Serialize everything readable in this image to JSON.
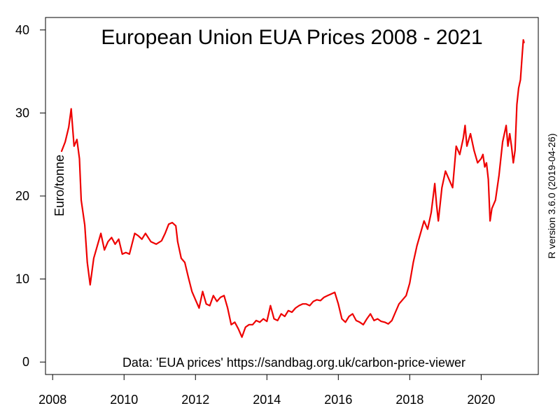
{
  "chart_data": {
    "type": "line",
    "title": "European Union EUA Prices 2008 - 2021",
    "ylabel": "Euro/tonne",
    "xlabel": "",
    "annotation": "Data: 'EUA prices' https://sandbag.org.uk/carbon-price-viewer",
    "side_note": "R version 3.6.0 (2019-04-26)",
    "xlim": [
      2007.8,
      2021.6
    ],
    "ylim": [
      -1.5,
      41.5
    ],
    "x_ticks": [
      2008,
      2010,
      2012,
      2014,
      2016,
      2018,
      2020
    ],
    "y_ticks": [
      0,
      10,
      20,
      30,
      40
    ],
    "grid": false,
    "series": [
      {
        "color": "#ee0000",
        "points": [
          [
            2008.25,
            25.4
          ],
          [
            2008.35,
            26.5
          ],
          [
            2008.45,
            28.3
          ],
          [
            2008.52,
            30.5
          ],
          [
            2008.6,
            26.0
          ],
          [
            2008.68,
            26.8
          ],
          [
            2008.75,
            24.5
          ],
          [
            2008.8,
            19.5
          ],
          [
            2008.9,
            16.5
          ],
          [
            2008.97,
            12.0
          ],
          [
            2009.05,
            9.3
          ],
          [
            2009.15,
            12.5
          ],
          [
            2009.25,
            14.0
          ],
          [
            2009.35,
            15.5
          ],
          [
            2009.45,
            13.5
          ],
          [
            2009.55,
            14.5
          ],
          [
            2009.65,
            15.0
          ],
          [
            2009.75,
            14.2
          ],
          [
            2009.85,
            14.8
          ],
          [
            2009.95,
            13.0
          ],
          [
            2010.05,
            13.2
          ],
          [
            2010.15,
            13.0
          ],
          [
            2010.3,
            15.5
          ],
          [
            2010.4,
            15.2
          ],
          [
            2010.5,
            14.8
          ],
          [
            2010.6,
            15.5
          ],
          [
            2010.75,
            14.5
          ],
          [
            2010.9,
            14.2
          ],
          [
            2011.05,
            14.6
          ],
          [
            2011.15,
            15.5
          ],
          [
            2011.25,
            16.6
          ],
          [
            2011.35,
            16.8
          ],
          [
            2011.45,
            16.4
          ],
          [
            2011.5,
            14.5
          ],
          [
            2011.6,
            12.5
          ],
          [
            2011.7,
            12.0
          ],
          [
            2011.8,
            10.2
          ],
          [
            2011.9,
            8.5
          ],
          [
            2012.0,
            7.5
          ],
          [
            2012.1,
            6.5
          ],
          [
            2012.2,
            8.5
          ],
          [
            2012.3,
            7.0
          ],
          [
            2012.4,
            6.8
          ],
          [
            2012.5,
            8.0
          ],
          [
            2012.6,
            7.3
          ],
          [
            2012.7,
            7.8
          ],
          [
            2012.8,
            8.0
          ],
          [
            2012.9,
            6.5
          ],
          [
            2013.0,
            4.5
          ],
          [
            2013.1,
            4.8
          ],
          [
            2013.2,
            4.0
          ],
          [
            2013.3,
            3.0
          ],
          [
            2013.4,
            4.2
          ],
          [
            2013.5,
            4.5
          ],
          [
            2013.6,
            4.5
          ],
          [
            2013.7,
            5.0
          ],
          [
            2013.8,
            4.8
          ],
          [
            2013.9,
            5.2
          ],
          [
            2014.0,
            4.9
          ],
          [
            2014.1,
            6.8
          ],
          [
            2014.2,
            5.2
          ],
          [
            2014.3,
            5.0
          ],
          [
            2014.4,
            5.8
          ],
          [
            2014.5,
            5.5
          ],
          [
            2014.6,
            6.2
          ],
          [
            2014.7,
            6.0
          ],
          [
            2014.8,
            6.5
          ],
          [
            2014.9,
            6.8
          ],
          [
            2015.0,
            7.0
          ],
          [
            2015.1,
            7.0
          ],
          [
            2015.2,
            6.8
          ],
          [
            2015.3,
            7.3
          ],
          [
            2015.4,
            7.5
          ],
          [
            2015.5,
            7.4
          ],
          [
            2015.6,
            7.8
          ],
          [
            2015.7,
            8.0
          ],
          [
            2015.8,
            8.2
          ],
          [
            2015.9,
            8.4
          ],
          [
            2016.0,
            7.0
          ],
          [
            2016.1,
            5.2
          ],
          [
            2016.2,
            4.8
          ],
          [
            2016.3,
            5.5
          ],
          [
            2016.4,
            5.8
          ],
          [
            2016.5,
            5.0
          ],
          [
            2016.6,
            4.8
          ],
          [
            2016.7,
            4.5
          ],
          [
            2016.8,
            5.2
          ],
          [
            2016.9,
            5.8
          ],
          [
            2017.0,
            5.0
          ],
          [
            2017.1,
            5.2
          ],
          [
            2017.2,
            4.9
          ],
          [
            2017.3,
            4.8
          ],
          [
            2017.4,
            4.6
          ],
          [
            2017.5,
            5.0
          ],
          [
            2017.6,
            6.0
          ],
          [
            2017.7,
            7.0
          ],
          [
            2017.8,
            7.5
          ],
          [
            2017.9,
            8.0
          ],
          [
            2018.0,
            9.5
          ],
          [
            2018.1,
            12.0
          ],
          [
            2018.2,
            14.0
          ],
          [
            2018.3,
            15.5
          ],
          [
            2018.4,
            17.0
          ],
          [
            2018.5,
            16.0
          ],
          [
            2018.6,
            18.0
          ],
          [
            2018.7,
            21.5
          ],
          [
            2018.75,
            19.0
          ],
          [
            2018.8,
            17.0
          ],
          [
            2018.9,
            21.0
          ],
          [
            2019.0,
            23.0
          ],
          [
            2019.1,
            22.0
          ],
          [
            2019.2,
            21.0
          ],
          [
            2019.3,
            26.0
          ],
          [
            2019.4,
            25.0
          ],
          [
            2019.5,
            27.0
          ],
          [
            2019.55,
            28.5
          ],
          [
            2019.6,
            26.0
          ],
          [
            2019.7,
            27.5
          ],
          [
            2019.8,
            25.5
          ],
          [
            2019.9,
            24.0
          ],
          [
            2020.0,
            24.5
          ],
          [
            2020.05,
            25.0
          ],
          [
            2020.1,
            23.5
          ],
          [
            2020.15,
            24.0
          ],
          [
            2020.2,
            22.0
          ],
          [
            2020.25,
            17.0
          ],
          [
            2020.3,
            18.5
          ],
          [
            2020.4,
            19.5
          ],
          [
            2020.5,
            22.5
          ],
          [
            2020.6,
            26.5
          ],
          [
            2020.7,
            28.5
          ],
          [
            2020.75,
            26.0
          ],
          [
            2020.8,
            27.5
          ],
          [
            2020.85,
            26.0
          ],
          [
            2020.9,
            24.0
          ],
          [
            2020.95,
            25.5
          ],
          [
            2021.0,
            31.0
          ],
          [
            2021.05,
            33.0
          ],
          [
            2021.1,
            34.0
          ],
          [
            2021.15,
            37.0
          ],
          [
            2021.18,
            38.8
          ],
          [
            2021.2,
            38.5
          ]
        ]
      }
    ]
  }
}
